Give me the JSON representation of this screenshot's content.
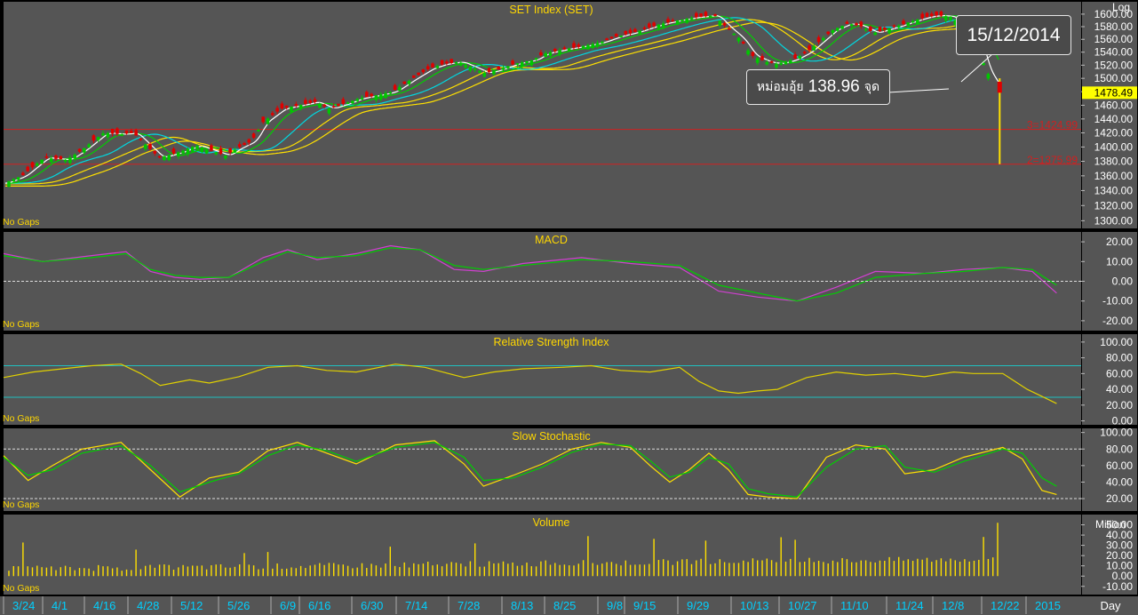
{
  "chart_data": [
    {
      "type": "candlestick",
      "title": "SET Index (SET)",
      "scale_label": "Log",
      "ylim": [
        1290,
        1620
      ],
      "yticks": [
        "1600.00",
        "1580.00",
        "1560.00",
        "1540.00",
        "1520.00",
        "1500.00",
        "1480.00",
        "1460.00",
        "1440.00",
        "1420.00",
        "1400.00",
        "1380.00",
        "1360.00",
        "1340.00",
        "1320.00",
        "1300.00"
      ],
      "last_value": "1478.49",
      "levels": [
        {
          "label": "3=1424.99",
          "value": 1424.99
        },
        {
          "label": "2=1375.99",
          "value": 1375.99
        }
      ],
      "close_path": [
        [
          "2014-03-21",
          1350
        ],
        [
          "2014-03-26",
          1360
        ],
        [
          "2014-04-01",
          1385
        ],
        [
          "2014-04-07",
          1382
        ],
        [
          "2014-04-11",
          1395
        ],
        [
          "2014-04-17",
          1420
        ],
        [
          "2014-04-22",
          1418
        ],
        [
          "2014-04-25",
          1420
        ],
        [
          "2014-04-29",
          1400
        ],
        [
          "2014-05-02",
          1385
        ],
        [
          "2014-05-07",
          1392
        ],
        [
          "2014-05-12",
          1402
        ],
        [
          "2014-05-16",
          1395
        ],
        [
          "2014-05-20",
          1388
        ],
        [
          "2014-05-23",
          1398
        ],
        [
          "2014-05-27",
          1408
        ],
        [
          "2014-05-30",
          1435
        ],
        [
          "2014-06-04",
          1455
        ],
        [
          "2014-06-09",
          1460
        ],
        [
          "2014-06-13",
          1465
        ],
        [
          "2014-06-17",
          1455
        ],
        [
          "2014-06-20",
          1460
        ],
        [
          "2014-06-25",
          1470
        ],
        [
          "2014-06-30",
          1475
        ],
        [
          "2014-07-04",
          1480
        ],
        [
          "2014-07-09",
          1498
        ],
        [
          "2014-07-14",
          1515
        ],
        [
          "2014-07-18",
          1522
        ],
        [
          "2014-07-22",
          1525
        ],
        [
          "2014-07-25",
          1518
        ],
        [
          "2014-07-29",
          1508
        ],
        [
          "2014-08-01",
          1512
        ],
        [
          "2014-08-06",
          1522
        ],
        [
          "2014-08-11",
          1528
        ],
        [
          "2014-08-14",
          1538
        ],
        [
          "2014-08-20",
          1545
        ],
        [
          "2014-08-25",
          1550
        ],
        [
          "2014-08-29",
          1555
        ],
        [
          "2014-09-03",
          1565
        ],
        [
          "2014-09-08",
          1572
        ],
        [
          "2014-09-11",
          1578
        ],
        [
          "2014-09-15",
          1585
        ],
        [
          "2014-09-19",
          1590
        ],
        [
          "2014-09-24",
          1595
        ],
        [
          "2014-09-29",
          1598
        ],
        [
          "2014-10-02",
          1580
        ],
        [
          "2014-10-06",
          1560
        ],
        [
          "2014-10-09",
          1535
        ],
        [
          "2014-10-13",
          1525
        ],
        [
          "2014-10-16",
          1522
        ],
        [
          "2014-10-20",
          1528
        ],
        [
          "2014-10-24",
          1540
        ],
        [
          "2014-10-28",
          1560
        ],
        [
          "2014-10-31",
          1575
        ],
        [
          "2014-11-04",
          1585
        ],
        [
          "2014-11-07",
          1582
        ],
        [
          "2014-11-11",
          1570
        ],
        [
          "2014-11-14",
          1575
        ],
        [
          "2014-11-18",
          1582
        ],
        [
          "2014-11-21",
          1588
        ],
        [
          "2014-11-25",
          1595
        ],
        [
          "2014-11-28",
          1598
        ],
        [
          "2014-12-02",
          1596
        ],
        [
          "2014-12-04",
          1585
        ],
        [
          "2014-12-09",
          1560
        ],
        [
          "2014-12-11",
          1515
        ],
        [
          "2014-12-15",
          1478.49
        ]
      ],
      "last_candle": {
        "date": "2014-12-15",
        "open": 1495,
        "high": 1500,
        "low": 1375.99,
        "close": 1478.49
      },
      "footer": "No Gaps"
    },
    {
      "type": "line",
      "title": "MACD",
      "ylim": [
        -25,
        25
      ],
      "yticks": [
        "20.00",
        "10.00",
        "0.00",
        "-10.00",
        "-20.00"
      ],
      "series": [
        {
          "values": [
            [
              0,
              14
            ],
            [
              8,
              10
            ],
            [
              18,
              13
            ],
            [
              25,
              15
            ],
            [
              30,
              5
            ],
            [
              35,
              2
            ],
            [
              40,
              1
            ],
            [
              46,
              2
            ],
            [
              53,
              12
            ],
            [
              58,
              16
            ],
            [
              64,
              11
            ],
            [
              72,
              14
            ],
            [
              79,
              18
            ],
            [
              85,
              16
            ],
            [
              92,
              6
            ],
            [
              98,
              5
            ],
            [
              106,
              9
            ],
            [
              118,
              12
            ],
            [
              128,
              9
            ],
            [
              138,
              7
            ],
            [
              146,
              -5
            ],
            [
              154,
              -8
            ],
            [
              162,
              -10
            ],
            [
              170,
              -3
            ],
            [
              178,
              5
            ],
            [
              188,
              4
            ],
            [
              196,
              6
            ],
            [
              204,
              7
            ],
            [
              210,
              5
            ],
            [
              215,
              -6
            ]
          ]
        },
        {
          "values": [
            [
              0,
              13
            ],
            [
              8,
              10
            ],
            [
              18,
              12
            ],
            [
              25,
              14
            ],
            [
              30,
              6
            ],
            [
              35,
              3
            ],
            [
              40,
              2
            ],
            [
              46,
              2
            ],
            [
              53,
              10
            ],
            [
              58,
              15
            ],
            [
              64,
              12
            ],
            [
              72,
              13
            ],
            [
              79,
              17
            ],
            [
              85,
              16
            ],
            [
              92,
              8
            ],
            [
              98,
              6
            ],
            [
              106,
              8
            ],
            [
              118,
              11
            ],
            [
              128,
              10
            ],
            [
              138,
              8
            ],
            [
              146,
              -2
            ],
            [
              154,
              -6
            ],
            [
              162,
              -10
            ],
            [
              170,
              -6
            ],
            [
              178,
              2
            ],
            [
              188,
              4
            ],
            [
              196,
              5
            ],
            [
              204,
              7
            ],
            [
              210,
              6
            ],
            [
              215,
              -2
            ]
          ]
        }
      ],
      "footer": "No Gaps"
    },
    {
      "type": "line",
      "title": "Relative Strength Index",
      "ylim": [
        -5,
        110
      ],
      "yticks": [
        "100.00",
        "80.00",
        "60.00",
        "40.00",
        "20.00",
        "0.00"
      ],
      "levels": [
        70,
        30
      ],
      "series": [
        {
          "values": [
            [
              0,
              55
            ],
            [
              6,
              62
            ],
            [
              12,
              66
            ],
            [
              18,
              70
            ],
            [
              24,
              72
            ],
            [
              28,
              60
            ],
            [
              32,
              45
            ],
            [
              38,
              52
            ],
            [
              42,
              48
            ],
            [
              48,
              56
            ],
            [
              54,
              68
            ],
            [
              60,
              70
            ],
            [
              66,
              64
            ],
            [
              72,
              62
            ],
            [
              80,
              72
            ],
            [
              86,
              68
            ],
            [
              94,
              55
            ],
            [
              100,
              62
            ],
            [
              106,
              66
            ],
            [
              114,
              68
            ],
            [
              120,
              70
            ],
            [
              126,
              64
            ],
            [
              132,
              62
            ],
            [
              138,
              68
            ],
            [
              142,
              50
            ],
            [
              146,
              38
            ],
            [
              150,
              35
            ],
            [
              154,
              38
            ],
            [
              158,
              40
            ],
            [
              164,
              55
            ],
            [
              170,
              62
            ],
            [
              176,
              58
            ],
            [
              182,
              60
            ],
            [
              188,
              56
            ],
            [
              194,
              62
            ],
            [
              198,
              60
            ],
            [
              204,
              60
            ],
            [
              209,
              40
            ],
            [
              213,
              28
            ],
            [
              215,
              22
            ]
          ]
        }
      ],
      "footer": "No Gaps"
    },
    {
      "type": "line",
      "title": "Slow Stochastic",
      "ylim": [
        5,
        105
      ],
      "yticks": [
        "100.00",
        "80.00",
        "60.00",
        "40.00",
        "20.00"
      ],
      "levels": [
        80,
        20
      ],
      "series": [
        {
          "values": [
            [
              0,
              72
            ],
            [
              5,
              42
            ],
            [
              10,
              60
            ],
            [
              16,
              80
            ],
            [
              24,
              88
            ],
            [
              30,
              55
            ],
            [
              36,
              22
            ],
            [
              42,
              45
            ],
            [
              48,
              52
            ],
            [
              54,
              78
            ],
            [
              60,
              88
            ],
            [
              66,
              75
            ],
            [
              72,
              62
            ],
            [
              80,
              85
            ],
            [
              88,
              90
            ],
            [
              94,
              62
            ],
            [
              98,
              35
            ],
            [
              104,
              48
            ],
            [
              110,
              62
            ],
            [
              116,
              80
            ],
            [
              122,
              88
            ],
            [
              128,
              82
            ],
            [
              132,
              60
            ],
            [
              136,
              40
            ],
            [
              140,
              55
            ],
            [
              144,
              75
            ],
            [
              148,
              55
            ],
            [
              152,
              25
            ],
            [
              156,
              22
            ],
            [
              162,
              20
            ],
            [
              168,
              70
            ],
            [
              174,
              85
            ],
            [
              180,
              80
            ],
            [
              184,
              50
            ],
            [
              190,
              55
            ],
            [
              196,
              70
            ],
            [
              204,
              82
            ],
            [
              208,
              68
            ],
            [
              212,
              30
            ],
            [
              215,
              25
            ]
          ]
        },
        {
          "values": [
            [
              0,
              70
            ],
            [
              5,
              48
            ],
            [
              10,
              55
            ],
            [
              16,
              75
            ],
            [
              24,
              84
            ],
            [
              30,
              60
            ],
            [
              36,
              28
            ],
            [
              42,
              40
            ],
            [
              48,
              50
            ],
            [
              54,
              72
            ],
            [
              60,
              85
            ],
            [
              66,
              78
            ],
            [
              72,
              65
            ],
            [
              80,
              82
            ],
            [
              88,
              88
            ],
            [
              94,
              70
            ],
            [
              98,
              42
            ],
            [
              104,
              45
            ],
            [
              110,
              58
            ],
            [
              116,
              76
            ],
            [
              122,
              86
            ],
            [
              128,
              84
            ],
            [
              132,
              66
            ],
            [
              136,
              46
            ],
            [
              140,
              52
            ],
            [
              144,
              70
            ],
            [
              148,
              62
            ],
            [
              152,
              32
            ],
            [
              156,
              26
            ],
            [
              162,
              22
            ],
            [
              168,
              58
            ],
            [
              174,
              80
            ],
            [
              180,
              84
            ],
            [
              184,
              58
            ],
            [
              190,
              52
            ],
            [
              196,
              65
            ],
            [
              204,
              80
            ],
            [
              208,
              75
            ],
            [
              212,
              45
            ],
            [
              215,
              35
            ]
          ]
        }
      ],
      "footer": "No Gaps"
    },
    {
      "type": "bar",
      "title": "Volume",
      "unit_label": "Million",
      "ylim": [
        -18,
        60
      ],
      "yticks": [
        "50.00",
        "40.00",
        "30.00",
        "20.00",
        "10.00",
        "0.00",
        "-10.00"
      ],
      "footer": "No Gaps"
    }
  ],
  "x_axis": {
    "ticks": [
      "3/24",
      "4/1",
      "4/16",
      "4/28",
      "5/12",
      "5/26",
      "6/9",
      "6/16",
      "6/30",
      "7/14",
      "7/28",
      "8/13",
      "8/25",
      "9/8",
      "9/15",
      "9/29",
      "10/13",
      "10/27",
      "11/10",
      "11/24",
      "12/8",
      "12/22",
      "2015"
    ],
    "period_label": "Day"
  },
  "callouts": {
    "date": "15/12/2014",
    "drop_prefix": "หม่อมอุ้ย",
    "drop_value": "138.96",
    "drop_suffix": "จุด"
  },
  "colors": {
    "up": "#00c800",
    "down": "#e00000",
    "ma_fast": "#ffffff",
    "ma_green": "#00d000",
    "ma_cyan": "#00d8e0",
    "ma_yellow": "#ffe000",
    "level_line": "#d02020",
    "macd_green": "#00d000",
    "macd_magenta": "#d040d0",
    "rsi": "#e0d000",
    "title": "#ffd700",
    "tick_label": "#00d0ff"
  }
}
